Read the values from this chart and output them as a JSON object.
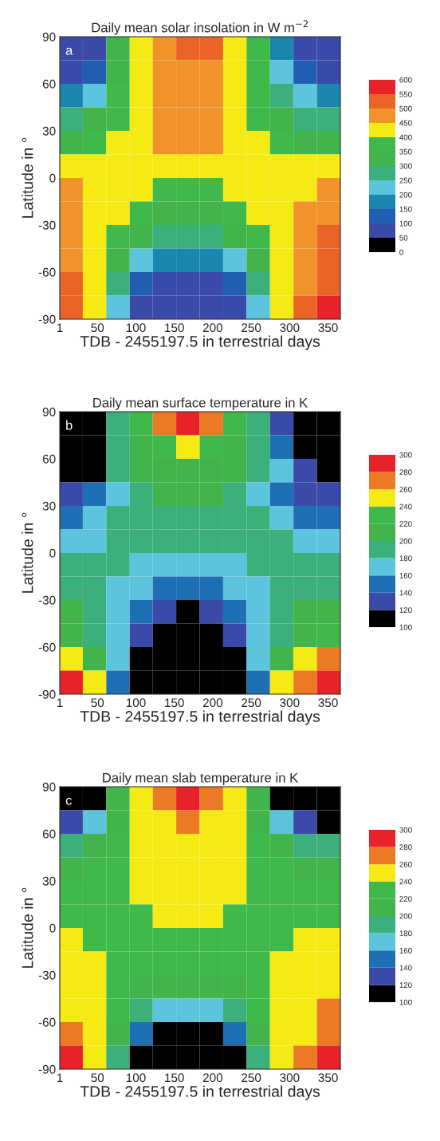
{
  "chart_data": [
    {
      "type": "heatmap",
      "title": "Daily mean solar insolation in W m$^{−2}$",
      "xlabel": "TDB - 2455197.5 in terrestrial days",
      "ylabel": "Latitude in °",
      "annotations": [
        "a"
      ],
      "x": [
        16,
        46,
        77,
        107,
        137,
        168,
        198,
        229,
        259,
        290,
        320,
        351
      ],
      "xlim": [
        1,
        366
      ],
      "xticks": [
        1,
        50,
        100,
        150,
        200,
        250,
        300,
        350
      ],
      "ylim": [
        -90,
        90
      ],
      "yticks": [
        -90,
        -60,
        -30,
        0,
        30,
        60,
        90
      ],
      "clim": [
        0,
        600
      ],
      "cticks": [
        0,
        50,
        100,
        150,
        200,
        250,
        300,
        350,
        400,
        450,
        500,
        550,
        600
      ],
      "colors": [
        "#000000",
        "#3a4aa8",
        "#1f5eb0",
        "#1a86b0",
        "#5cc4dc",
        "#3bb07a",
        "#43b44c",
        "#3fb94a",
        "#f5ea14",
        "#f0932a",
        "#ec6425",
        "#e8222a"
      ],
      "cells": [
        [
          75,
          75,
          300,
          425,
          475,
          525,
          500,
          425,
          375,
          175,
          75,
          75
        ],
        [
          75,
          125,
          325,
          425,
          475,
          475,
          475,
          425,
          375,
          225,
          125,
          75
        ],
        [
          175,
          225,
          375,
          425,
          475,
          475,
          475,
          425,
          375,
          275,
          225,
          175
        ],
        [
          275,
          325,
          375,
          425,
          475,
          475,
          475,
          425,
          375,
          325,
          275,
          275
        ],
        [
          325,
          375,
          425,
          425,
          475,
          475,
          475,
          425,
          425,
          375,
          325,
          325
        ],
        [
          425,
          425,
          425,
          425,
          425,
          425,
          425,
          425,
          425,
          425,
          425,
          425
        ],
        [
          475,
          425,
          425,
          425,
          375,
          375,
          375,
          425,
          425,
          425,
          425,
          475
        ],
        [
          475,
          425,
          425,
          375,
          325,
          325,
          325,
          375,
          425,
          425,
          475,
          475
        ],
        [
          475,
          425,
          375,
          325,
          275,
          275,
          275,
          325,
          375,
          425,
          475,
          525
        ],
        [
          475,
          425,
          325,
          225,
          175,
          175,
          175,
          225,
          325,
          425,
          475,
          525
        ],
        [
          525,
          425,
          275,
          125,
          75,
          75,
          75,
          125,
          275,
          425,
          475,
          525
        ],
        [
          525,
          425,
          225,
          75,
          75,
          75,
          75,
          75,
          225,
          425,
          525,
          575
        ]
      ]
    },
    {
      "type": "heatmap",
      "title": "Daily mean surface temperature in K",
      "xlabel": "TDB - 2455197.5 in terrestrial days",
      "ylabel": "Latitude in °",
      "annotations": [
        "b"
      ],
      "x": [
        16,
        46,
        77,
        107,
        137,
        168,
        198,
        229,
        259,
        290,
        320,
        351
      ],
      "xlim": [
        1,
        366
      ],
      "xticks": [
        1,
        50,
        100,
        150,
        200,
        250,
        300,
        350
      ],
      "ylim": [
        -90,
        90
      ],
      "yticks": [
        -90,
        -60,
        -30,
        0,
        30,
        60,
        90
      ],
      "clim": [
        100,
        300
      ],
      "cticks": [
        100,
        120,
        140,
        160,
        180,
        200,
        220,
        240,
        260,
        280,
        300
      ],
      "colors": [
        "#000000",
        "#3a4aa8",
        "#1f6fb5",
        "#5cc4dc",
        "#3bb07a",
        "#43b44c",
        "#3fb94a",
        "#f5ea14",
        "#ec7a25",
        "#e8222a"
      ],
      "cells": [
        [
          110,
          110,
          190,
          230,
          270,
          290,
          270,
          230,
          190,
          130,
          110,
          110
        ],
        [
          110,
          110,
          190,
          210,
          230,
          250,
          230,
          210,
          190,
          150,
          110,
          110
        ],
        [
          110,
          110,
          190,
          210,
          210,
          210,
          210,
          210,
          190,
          170,
          130,
          110
        ],
        [
          130,
          150,
          170,
          190,
          210,
          210,
          210,
          190,
          170,
          150,
          130,
          130
        ],
        [
          150,
          170,
          190,
          190,
          190,
          190,
          190,
          190,
          190,
          170,
          150,
          150
        ],
        [
          170,
          170,
          190,
          190,
          190,
          190,
          190,
          190,
          190,
          190,
          170,
          170
        ],
        [
          190,
          190,
          190,
          170,
          170,
          170,
          170,
          170,
          190,
          190,
          190,
          190
        ],
        [
          190,
          190,
          170,
          170,
          150,
          150,
          150,
          170,
          170,
          190,
          190,
          190
        ],
        [
          210,
          190,
          170,
          150,
          130,
          110,
          130,
          150,
          170,
          190,
          210,
          210
        ],
        [
          210,
          190,
          170,
          130,
          110,
          110,
          110,
          130,
          170,
          190,
          210,
          230
        ],
        [
          250,
          210,
          170,
          110,
          110,
          110,
          110,
          110,
          170,
          210,
          250,
          270
        ],
        [
          290,
          250,
          150,
          110,
          110,
          110,
          110,
          110,
          150,
          250,
          270,
          290
        ]
      ]
    },
    {
      "type": "heatmap",
      "title": "Daily mean slab temperature in K",
      "xlabel": "TDB - 2455197.5 in terrestrial days",
      "ylabel": "Latitude in °",
      "annotations": [
        "c"
      ],
      "x": [
        16,
        46,
        77,
        107,
        137,
        168,
        198,
        229,
        259,
        290,
        320,
        351
      ],
      "xlim": [
        1,
        366
      ],
      "xticks": [
        1,
        50,
        100,
        150,
        200,
        250,
        300,
        350
      ],
      "ylim": [
        -90,
        90
      ],
      "yticks": [
        -90,
        -60,
        -30,
        0,
        30,
        60,
        90
      ],
      "clim": [
        100,
        300
      ],
      "cticks": [
        100,
        120,
        140,
        160,
        180,
        200,
        220,
        240,
        260,
        280,
        300
      ],
      "colors": [
        "#000000",
        "#3a4aa8",
        "#1f6fb5",
        "#5cc4dc",
        "#3bb07a",
        "#43b44c",
        "#3fb94a",
        "#f5ea14",
        "#ec7a25",
        "#e8222a"
      ],
      "cells": [
        [
          110,
          110,
          210,
          250,
          270,
          290,
          270,
          250,
          210,
          110,
          110,
          110
        ],
        [
          130,
          170,
          210,
          250,
          250,
          270,
          250,
          250,
          210,
          170,
          130,
          110
        ],
        [
          190,
          210,
          230,
          250,
          250,
          250,
          250,
          250,
          230,
          210,
          190,
          190
        ],
        [
          210,
          230,
          230,
          250,
          250,
          250,
          250,
          250,
          230,
          230,
          210,
          210
        ],
        [
          230,
          230,
          230,
          250,
          250,
          250,
          250,
          250,
          230,
          230,
          230,
          230
        ],
        [
          230,
          230,
          230,
          230,
          250,
          250,
          250,
          230,
          230,
          230,
          230,
          230
        ],
        [
          250,
          230,
          230,
          230,
          230,
          230,
          230,
          230,
          230,
          230,
          250,
          250
        ],
        [
          250,
          250,
          230,
          230,
          230,
          230,
          230,
          230,
          230,
          250,
          250,
          250
        ],
        [
          250,
          250,
          230,
          210,
          210,
          210,
          210,
          210,
          230,
          250,
          250,
          250
        ],
        [
          250,
          250,
          230,
          190,
          170,
          170,
          170,
          190,
          230,
          250,
          250,
          270
        ],
        [
          270,
          250,
          210,
          150,
          110,
          110,
          110,
          150,
          210,
          250,
          250,
          270
        ],
        [
          290,
          250,
          190,
          110,
          110,
          110,
          110,
          110,
          190,
          250,
          270,
          290
        ]
      ]
    }
  ]
}
